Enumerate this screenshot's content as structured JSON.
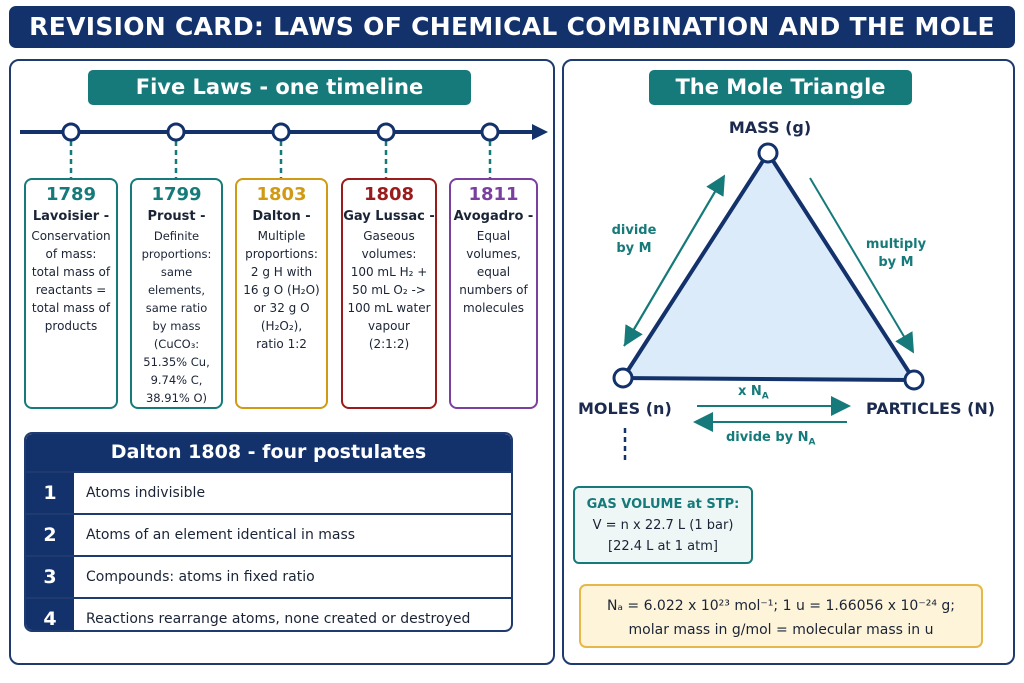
{
  "title": "REVISION CARD: LAWS OF CHEMICAL COMBINATION AND THE MOLE",
  "laws": {
    "heading": "Five Laws - one timeline",
    "cards": [
      {
        "year": "1789",
        "name": "Lavoisier -",
        "desc": "Conservation\nof mass:\ntotal mass of\nreactants =\ntotal mass of\nproducts",
        "color": "#167a7a"
      },
      {
        "year": "1799",
        "name": "Proust -",
        "desc": "Definite\nproportions:\nsame elements,\nsame ratio\nby mass\n(CuCO₃:\n51.35% Cu,\n9.74% C,\n38.91% O)",
        "color": "#167a7a"
      },
      {
        "year": "1803",
        "name": "Dalton -",
        "desc": "Multiple\nproportions:\n2 g H with\n16 g O (H₂O)\nor 32 g O\n(H₂O₂),\nratio 1:2",
        "color": "#d09a14"
      },
      {
        "year": "1808",
        "name": "Gay Lussac -",
        "desc": "Gaseous\nvolumes:\n100 mL H₂ +\n50 mL O₂ ->\n100 mL water\nvapour\n(2:1:2)",
        "color": "#9a1b1b"
      },
      {
        "year": "1811",
        "name": "Avogadro -",
        "desc": "Equal\nvolumes,\nequal\nnumbers of\nmolecules",
        "color": "#7b3fa0"
      }
    ]
  },
  "postulates": {
    "heading": "Dalton 1808 - four postulates",
    "items": [
      {
        "num": "1",
        "text": "Atoms indivisible"
      },
      {
        "num": "2",
        "text": "Atoms of an element identical in mass"
      },
      {
        "num": "3",
        "text": "Compounds: atoms in fixed ratio"
      },
      {
        "num": "4",
        "text": "Reactions rearrange atoms, none created or destroyed"
      }
    ]
  },
  "mole": {
    "heading": "The Mole Triangle",
    "mass_label": "MASS (g)",
    "moles_label": "MOLES (n)",
    "particles_label": "PARTICLES (N)",
    "divide_m": [
      "divide",
      "by M"
    ],
    "multiply_m": [
      "multiply",
      "by M"
    ],
    "times_na": "x N",
    "divide_na": "divide by N",
    "na_sub": "A",
    "gas": {
      "title": "GAS VOLUME at STP:",
      "line1": "V = n x 22.7 L (1 bar)",
      "line2": "[22.4 L at 1 atm]"
    },
    "constants": {
      "line1": "Nₐ = 6.022 x 10²³ mol⁻¹;  1 u = 1.66056 x 10⁻²⁴ g;",
      "line2": "molar mass in g/mol = molecular mass in u"
    }
  },
  "colors": {
    "navy": "#13326b",
    "teal": "#167a7a",
    "triangle_fill": "#dcebf9",
    "const_bg": "#fdf4d9",
    "const_border": "#e6b84a"
  }
}
